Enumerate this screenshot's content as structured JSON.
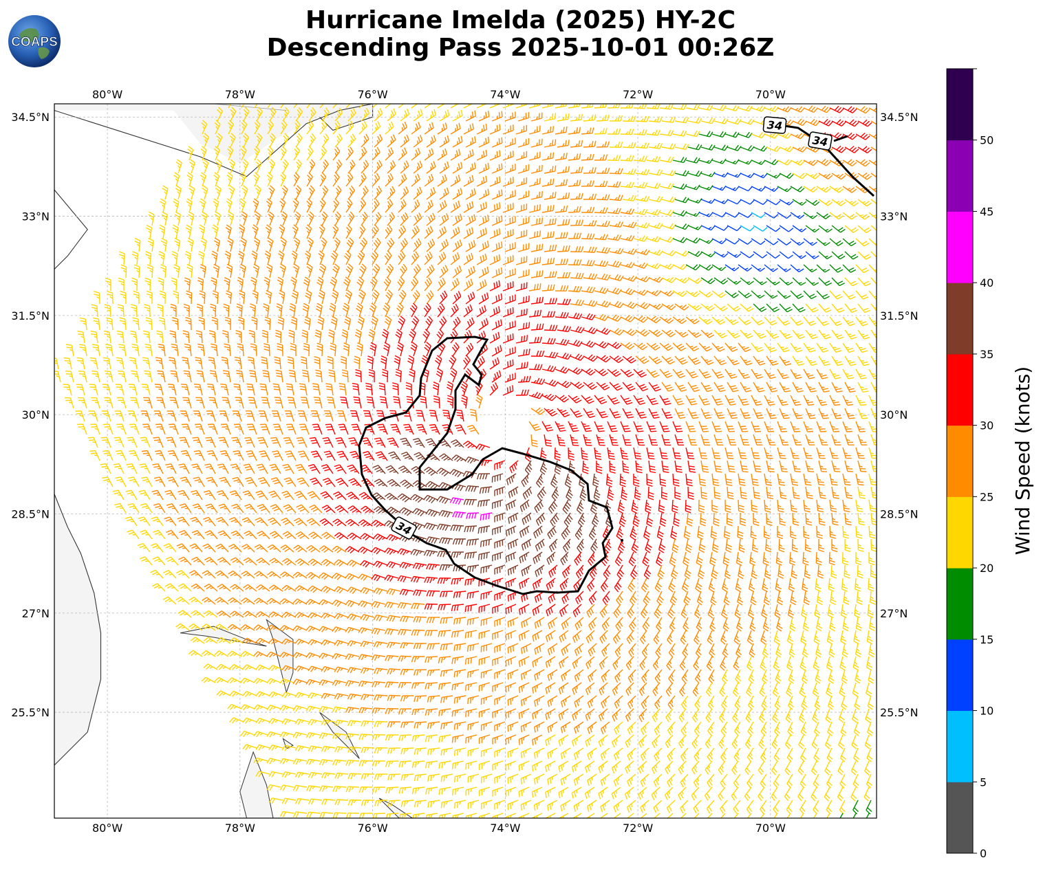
{
  "title": {
    "line1": "Hurricane Imelda (2025) HY-2C",
    "line2": "Descending Pass 2025-10-01 00:26Z"
  },
  "logo": {
    "text": "COAPS",
    "icon": "globe-logo-icon"
  },
  "map": {
    "lon_range": [
      -80.8,
      -68.4
    ],
    "lat_range": [
      23.9,
      34.7
    ],
    "lon_ticks": [
      {
        "value": -80,
        "label": "80°W"
      },
      {
        "value": -78,
        "label": "78°W"
      },
      {
        "value": -76,
        "label": "76°W"
      },
      {
        "value": -74,
        "label": "74°W"
      },
      {
        "value": -72,
        "label": "72°W"
      },
      {
        "value": -70,
        "label": "70°W"
      }
    ],
    "lat_ticks": [
      {
        "value": 25.5,
        "label": "25.5°N"
      },
      {
        "value": 27,
        "label": "27°N"
      },
      {
        "value": 28.5,
        "label": "28.5°N"
      },
      {
        "value": 30,
        "label": "30°N"
      },
      {
        "value": 31.5,
        "label": "31.5°N"
      },
      {
        "value": 33,
        "label": "33°N"
      },
      {
        "value": 34.5,
        "label": "34.5°N"
      }
    ],
    "gridlines": true,
    "storm_center": [
      -74.0,
      29.8
    ],
    "contour_label": "34",
    "land_color": "#f4f4f4",
    "coast_color": "#333333"
  },
  "colorbar": {
    "label": "Wind Speed (knots)",
    "ticks": [
      "0",
      "5",
      "10",
      "15",
      "20",
      "25",
      "30",
      "35",
      "40",
      "45",
      "50"
    ],
    "colors": [
      "#555555",
      "#00bfff",
      "#0040ff",
      "#008c00",
      "#ffd700",
      "#ff8c00",
      "#ff0000",
      "#7f3c28",
      "#ff00ff",
      "#8c00b4",
      "#2e004f"
    ]
  }
}
